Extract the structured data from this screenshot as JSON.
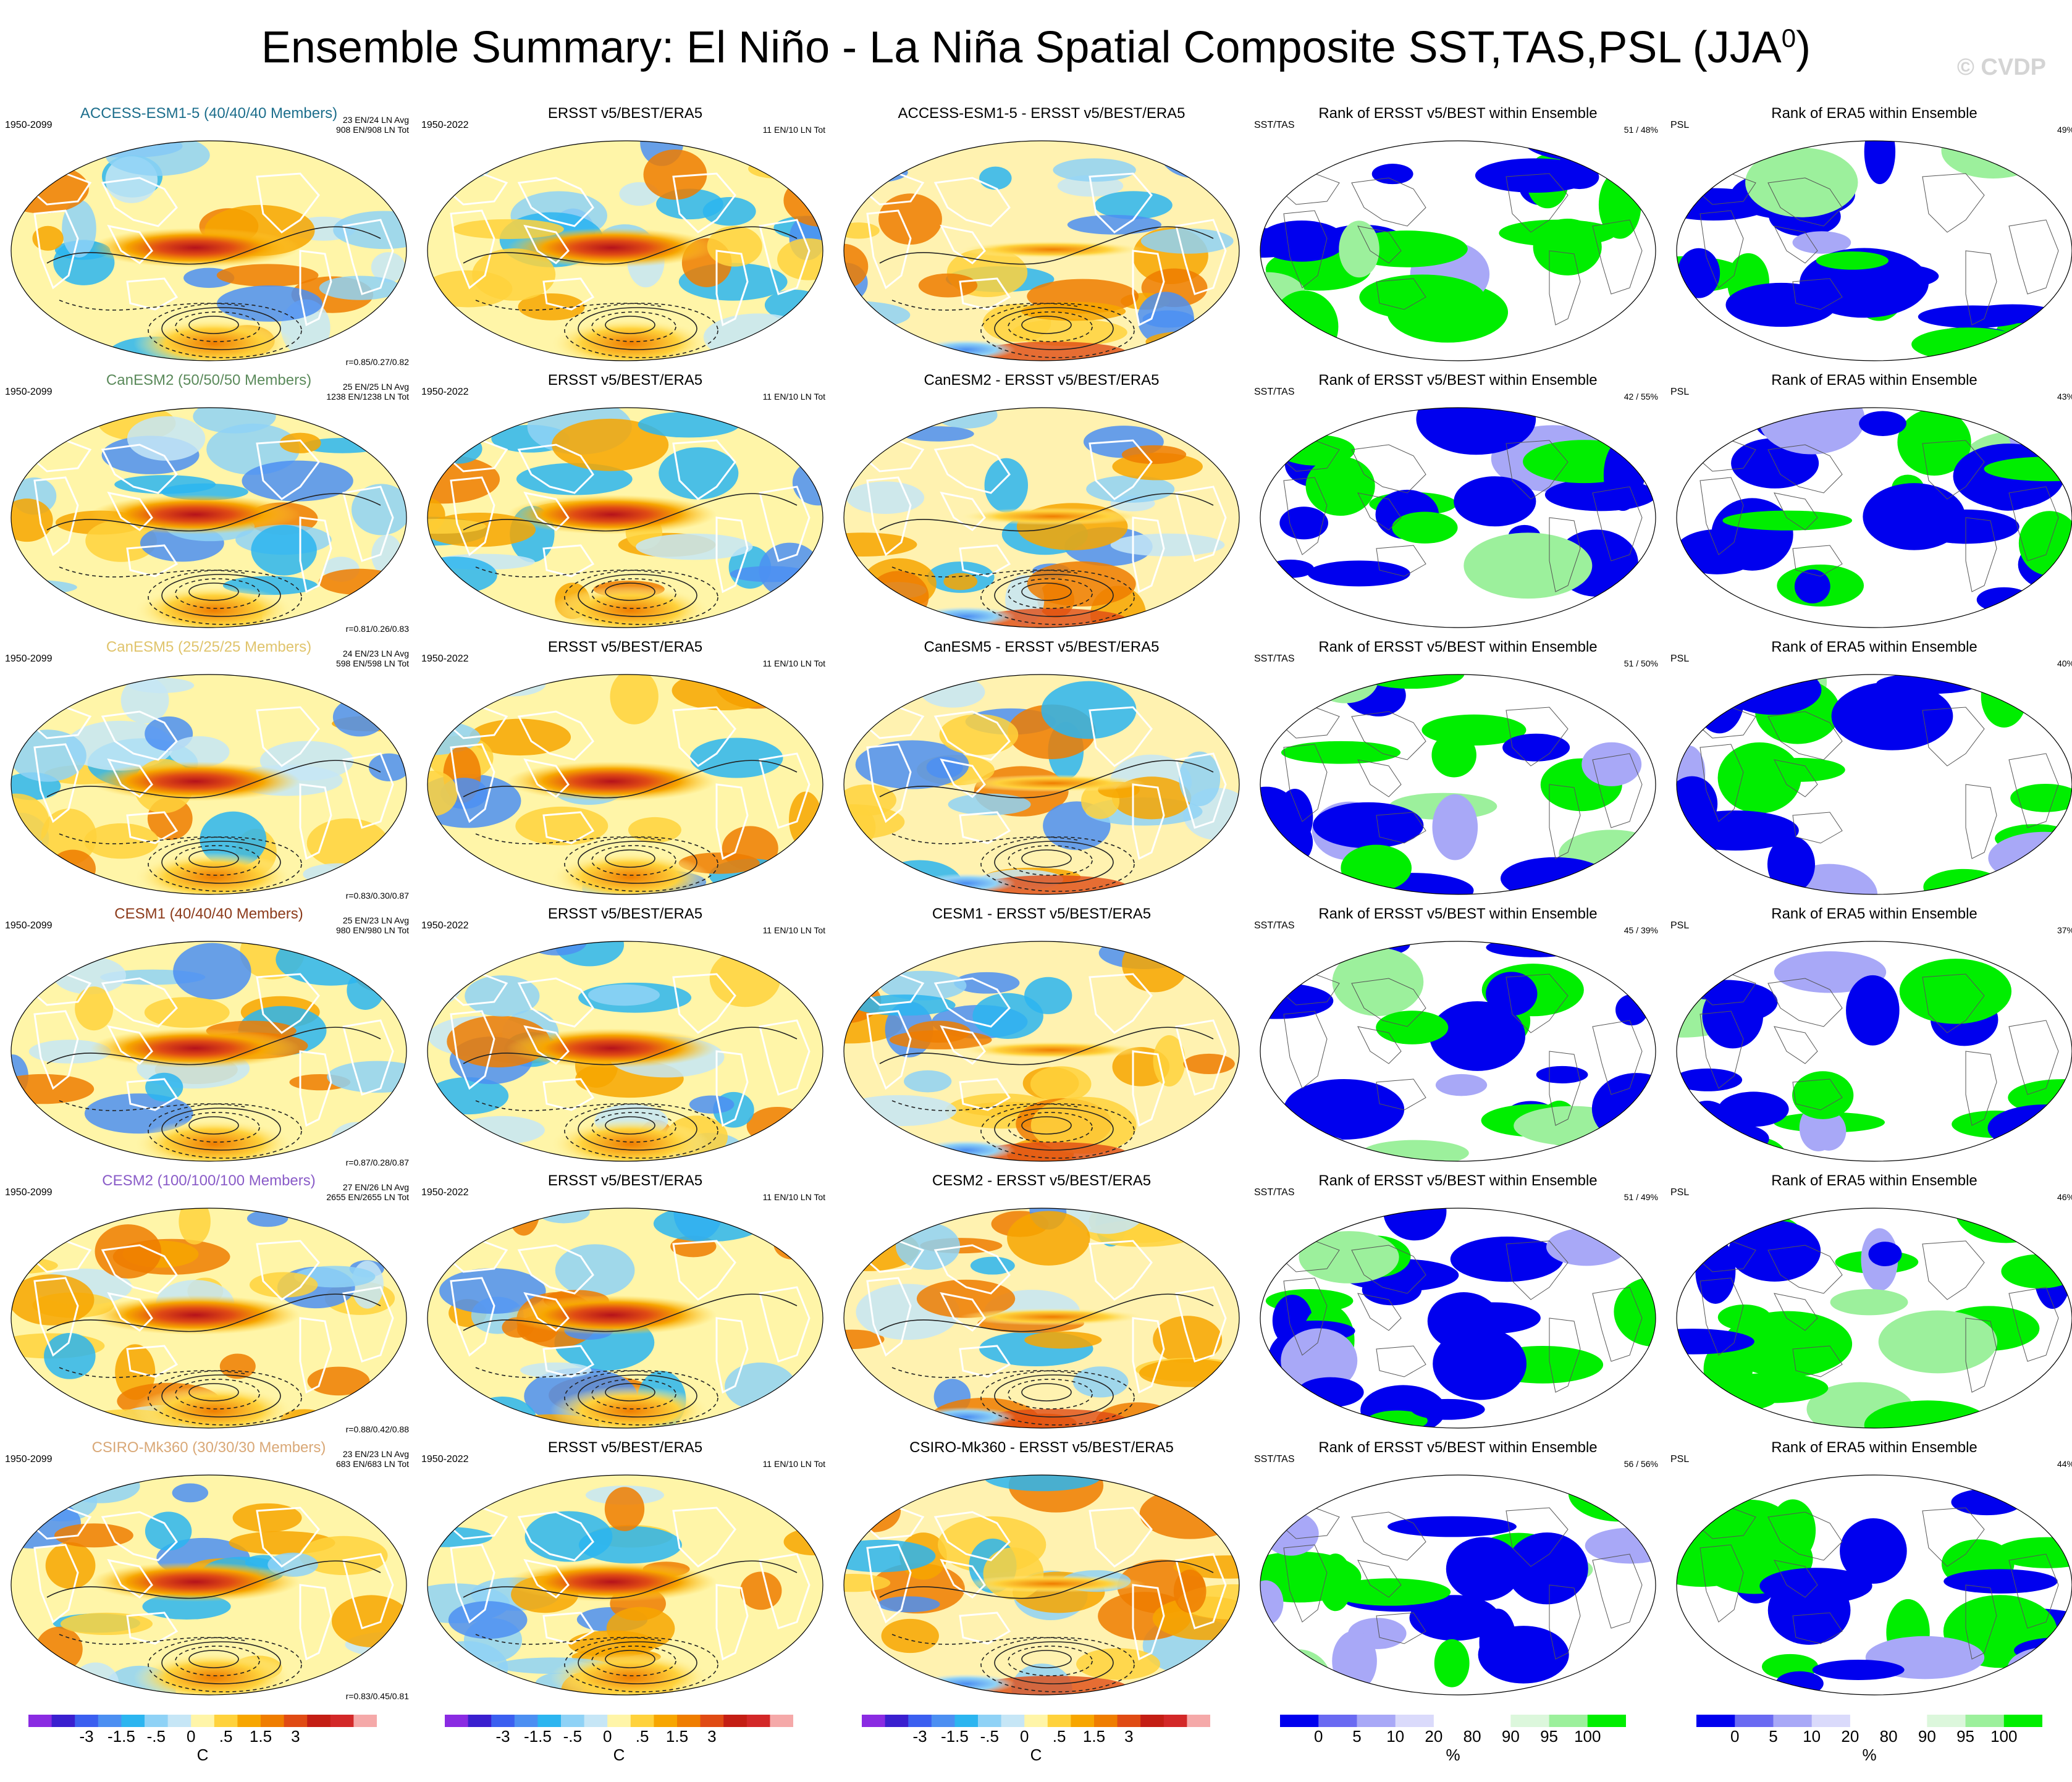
{
  "title": {
    "main": "Ensemble Summary: El Niño - La Niña Spatial Composite SST,TAS,PSL (JJA",
    "superscript": "0",
    "close": ")",
    "copyright": "© CVDP"
  },
  "rows": [
    {
      "model": "ACCESS-ESM1-5 (40/40/40 Members)",
      "model_color": "#1c6e8c",
      "period": "1950-2099",
      "avg": "23 EN/24 LN Avg",
      "tot": "908 EN/908 LN Tot",
      "corr": "r=0.85/0.27/0.82",
      "diff_title": "ACCESS-ESM1-5 - ERSST v5/BEST/ERA5",
      "rank_sst": "51 /  48%",
      "rank_psl": "49%"
    },
    {
      "model": "CanESM2 (50/50/50 Members)",
      "model_color": "#5b8a5b",
      "period": "1950-2099",
      "avg": "25 EN/25 LN Avg",
      "tot": "1238 EN/1238 LN Tot",
      "corr": "r=0.81/0.26/0.83",
      "diff_title": "CanESM2 - ERSST v5/BEST/ERA5",
      "rank_sst": "42 /  55%",
      "rank_psl": "43%"
    },
    {
      "model": "CanESM5 (25/25/25 Members)",
      "model_color": "#e0c46c",
      "period": "1950-2099",
      "avg": "24 EN/23 LN Avg",
      "tot": "598 EN/598 LN Tot",
      "corr": "r=0.83/0.30/0.87",
      "diff_title": "CanESM5 - ERSST v5/BEST/ERA5",
      "rank_sst": "51 /  50%",
      "rank_psl": "40%"
    },
    {
      "model": "CESM1 (40/40/40 Members)",
      "model_color": "#8b3a1a",
      "period": "1950-2099",
      "avg": "25 EN/23 LN Avg",
      "tot": "980 EN/980 LN Tot",
      "corr": "r=0.87/0.28/0.87",
      "diff_title": "CESM1 - ERSST v5/BEST/ERA5",
      "rank_sst": "45 /  39%",
      "rank_psl": "37%"
    },
    {
      "model": "CESM2 (100/100/100 Members)",
      "model_color": "#8a5cc8",
      "period": "1950-2099",
      "avg": "27 EN/26 LN Avg",
      "tot": "2655 EN/2655 LN Tot",
      "corr": "r=0.88/0.42/0.88",
      "diff_title": "CESM2 - ERSST v5/BEST/ERA5",
      "rank_sst": "51 /  49%",
      "rank_psl": "46%"
    },
    {
      "model": "CSIRO-Mk360 (30/30/30 Members)",
      "model_color": "#d9a877",
      "period": "1950-2099",
      "avg": "23 EN/23 LN Avg",
      "tot": "683 EN/683 LN Tot",
      "corr": "r=0.83/0.45/0.81",
      "diff_title": "CSIRO-Mk360 - ERSST v5/BEST/ERA5",
      "rank_sst": "56 /  56%",
      "rank_psl": "44%"
    }
  ],
  "obs": {
    "title": "ERSST v5/BEST/ERA5",
    "period": "1950-2022",
    "count": "11 EN/10 LN Tot"
  },
  "rank": {
    "sst_title": "Rank of ERSST v5/BEST within Ensemble",
    "psl_title": "Rank of ERA5 within Ensemble",
    "sst_label": "SST/TAS",
    "psl_label": "PSL"
  },
  "colorbars": {
    "temp": {
      "ticks": [
        "-3",
        "-1.5",
        "-.5",
        "0",
        ".5",
        "1.5",
        "3"
      ],
      "unit": "C",
      "colors": [
        "#8a2be2",
        "#3a1fcf",
        "#3b5ff0",
        "#4c8ff2",
        "#2cb5f0",
        "#8fd2f6",
        "#c6e6f6",
        "#fff5a8",
        "#ffd23c",
        "#f7a600",
        "#ef7d00",
        "#e04b14",
        "#c41e14",
        "#d32828",
        "#f5a9a9"
      ]
    },
    "rank": {
      "ticks": [
        "0",
        "5",
        "10",
        "20",
        "80",
        "90",
        "95",
        "100"
      ],
      "unit": "%",
      "colors": [
        "#0000ee",
        "#6a6af2",
        "#a8a8f7",
        "#dadafb",
        "#ffffff",
        "#ffffff",
        "#dcf7dc",
        "#9cf09c",
        "#00ee00"
      ]
    }
  },
  "chart_data": {
    "type": "heatmap",
    "title": "Ensemble Summary: El Niño - La Niña Spatial Composite SST,TAS,PSL (JJA0)",
    "columns": [
      "model ensemble mean composite",
      "ERSST v5/BEST/ERA5 observed composite",
      "model minus observed difference",
      "Rank of ERSST v5/BEST within Ensemble",
      "Rank of ERA5 within Ensemble"
    ],
    "models": [
      "ACCESS-ESM1-5",
      "CanESM2",
      "CanESM5",
      "CESM1",
      "CESM2",
      "CSIRO-Mk360"
    ],
    "temperature_scale_C": [
      -3,
      -1.5,
      -0.5,
      0,
      0.5,
      1.5,
      3
    ],
    "rank_scale_percent": [
      0,
      5,
      10,
      20,
      80,
      90,
      95,
      100
    ],
    "pattern_correlations_sst_tas_psl": [
      [
        0.85,
        0.27,
        0.82
      ],
      [
        0.81,
        0.26,
        0.83
      ],
      [
        0.83,
        0.3,
        0.87
      ],
      [
        0.87,
        0.28,
        0.87
      ],
      [
        0.88,
        0.42,
        0.88
      ],
      [
        0.83,
        0.45,
        0.81
      ]
    ],
    "rank_sst_tas_percent": [
      [
        51,
        48
      ],
      [
        42,
        55
      ],
      [
        51,
        50
      ],
      [
        45,
        39
      ],
      [
        51,
        49
      ],
      [
        56,
        56
      ]
    ],
    "rank_psl_percent": [
      49,
      43,
      40,
      37,
      46,
      44
    ]
  }
}
